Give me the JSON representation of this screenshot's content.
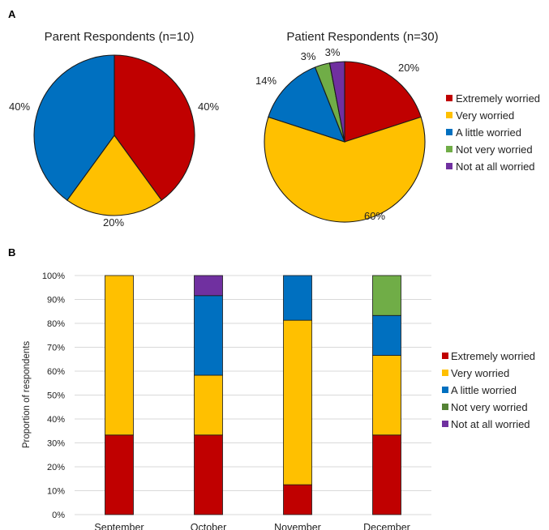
{
  "panel_labels": {
    "a": "A",
    "b": "B"
  },
  "colors": {
    "Extremely worried": "#c00000",
    "Very worried": "#ffc000",
    "A little worried": "#0070c0",
    "Not very worried": "#70ad47",
    "Not at all worried": "#7030a0"
  },
  "legend_b_colors": {
    "Extremely worried": "#c00000",
    "Very worried": "#ffc000",
    "A little worried": "#0070c0",
    "Not very worried": "#548235",
    "Not at all worried": "#7030a0"
  },
  "chart_data": [
    {
      "type": "pie",
      "title": "Parent Respondents (n=10)",
      "slices": [
        {
          "name": "Extremely worried",
          "value": 40,
          "label": "40%"
        },
        {
          "name": "Very worried",
          "value": 20,
          "label": "20%"
        },
        {
          "name": "A little worried",
          "value": 40,
          "label": "40%"
        }
      ]
    },
    {
      "type": "pie",
      "title": "Patient Respondents (n=30)",
      "slices": [
        {
          "name": "Extremely worried",
          "value": 20,
          "label": "20%"
        },
        {
          "name": "Very worried",
          "value": 60,
          "label": "60%"
        },
        {
          "name": "A little worried",
          "value": 14,
          "label": "14%"
        },
        {
          "name": "Not very worried",
          "value": 3,
          "label": "3%"
        },
        {
          "name": "Not at all worried",
          "value": 3,
          "label": "3%"
        }
      ],
      "legend": [
        "Extremely worried",
        "Very worried",
        "A little worried",
        "Not very worried",
        "Not at all worried"
      ]
    },
    {
      "type": "bar",
      "stacked": true,
      "categories": [
        "September",
        "October",
        "November",
        "December"
      ],
      "ylabel": "Proportion of respondents",
      "ylim": [
        0,
        100
      ],
      "yticks": [
        "0%",
        "10%",
        "20%",
        "30%",
        "40%",
        "50%",
        "60%",
        "70%",
        "80%",
        "90%",
        "100%"
      ],
      "grid": true,
      "legend_position": "right",
      "series": [
        {
          "name": "Extremely worried",
          "values": [
            33.3,
            33.3,
            12.5,
            33.3
          ]
        },
        {
          "name": "Very worried",
          "values": [
            66.7,
            25.0,
            68.8,
            33.3
          ]
        },
        {
          "name": "A little worried",
          "values": [
            0,
            33.3,
            18.7,
            16.7
          ]
        },
        {
          "name": "Not very worried",
          "values": [
            0,
            0,
            0,
            16.7
          ]
        },
        {
          "name": "Not at all worried",
          "values": [
            0,
            8.4,
            0,
            0
          ]
        }
      ]
    }
  ]
}
